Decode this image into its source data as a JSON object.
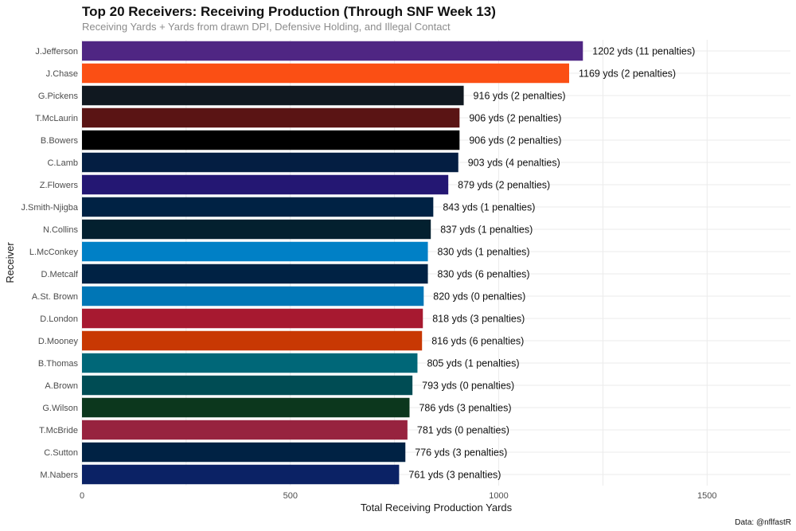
{
  "chart_data": {
    "type": "bar",
    "orientation": "horizontal",
    "title": "Top 20 Receivers: Receiving Production (Through SNF Week 13)",
    "subtitle": "Receiving Yards + Yards from drawn DPI, Defensive Holding, and Illegal Contact",
    "xlabel": "Total Receiving Production Yards",
    "ylabel": "Receiver",
    "caption": "Data: @nflfastR",
    "xlim": [
      0,
      1700
    ],
    "xticks": [
      0,
      500,
      1000,
      1500
    ],
    "grid": true,
    "categories": [
      "J.Jefferson",
      "J.Chase",
      "G.Pickens",
      "T.McLaurin",
      "B.Bowers",
      "C.Lamb",
      "Z.Flowers",
      "J.Smith-Njigba",
      "N.Collins",
      "L.McConkey",
      "D.Metcalf",
      "A.St. Brown",
      "D.London",
      "D.Mooney",
      "B.Thomas",
      "A.Brown",
      "G.Wilson",
      "T.McBride",
      "C.Sutton",
      "M.Nabers"
    ],
    "values": [
      1202,
      1169,
      916,
      906,
      906,
      903,
      879,
      843,
      837,
      830,
      830,
      820,
      818,
      816,
      805,
      793,
      786,
      781,
      776,
      761
    ],
    "labels": [
      "1202 yds (11 penalties)",
      "1169 yds (2 penalties)",
      "916 yds (2 penalties)",
      "906 yds (2 penalties)",
      "906 yds (2 penalties)",
      "903 yds (4 penalties)",
      "879 yds (2 penalties)",
      "843 yds (1 penalties)",
      "837 yds (1 penalties)",
      "830 yds (1 penalties)",
      "830 yds (6 penalties)",
      "820 yds (0 penalties)",
      "818 yds (3 penalties)",
      "816 yds (6 penalties)",
      "805 yds (1 penalties)",
      "793 yds (0 penalties)",
      "786 yds (3 penalties)",
      "781 yds (0 penalties)",
      "776 yds (3 penalties)",
      "761 yds (3 penalties)"
    ],
    "colors": [
      "#4F2683",
      "#FB4F14",
      "#101820",
      "#5A1414",
      "#000000",
      "#041E42",
      "#241773",
      "#002244",
      "#03202F",
      "#0080C6",
      "#002244",
      "#0076B6",
      "#A71930",
      "#C83803",
      "#006778",
      "#004C54",
      "#0C371D",
      "#97233F",
      "#002244",
      "#0B2265"
    ]
  }
}
